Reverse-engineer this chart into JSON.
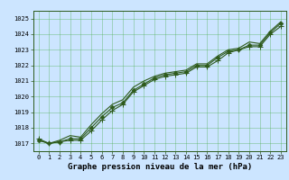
{
  "xlabel": "Graphe pression niveau de la mer (hPa)",
  "background_color": "#cce5ff",
  "plot_background": "#cce5ff",
  "grid_color": "#44aa44",
  "line_color": "#2d5a1b",
  "marker_color": "#2d5a1b",
  "x": [
    0,
    1,
    2,
    3,
    4,
    5,
    6,
    7,
    8,
    9,
    10,
    11,
    12,
    13,
    14,
    15,
    16,
    17,
    18,
    19,
    20,
    21,
    22,
    23
  ],
  "line1": [
    1017.2,
    1017.0,
    1017.1,
    1017.3,
    1017.3,
    1018.0,
    1018.7,
    1019.3,
    1019.6,
    1020.4,
    1020.8,
    1021.2,
    1021.4,
    1021.5,
    1021.6,
    1022.0,
    1022.0,
    1022.5,
    1022.9,
    1023.0,
    1023.3,
    1023.3,
    1024.1,
    1024.7
  ],
  "line2": [
    1017.3,
    1017.0,
    1017.1,
    1017.2,
    1017.2,
    1017.8,
    1018.5,
    1019.1,
    1019.5,
    1020.3,
    1020.7,
    1021.1,
    1021.3,
    1021.4,
    1021.5,
    1021.9,
    1021.9,
    1022.3,
    1022.8,
    1023.0,
    1023.2,
    1023.2,
    1024.0,
    1024.5
  ],
  "line3": [
    1017.2,
    1017.0,
    1017.2,
    1017.5,
    1017.4,
    1018.2,
    1018.9,
    1019.5,
    1019.8,
    1020.6,
    1021.0,
    1021.3,
    1021.5,
    1021.6,
    1021.7,
    1022.1,
    1022.1,
    1022.6,
    1023.0,
    1023.1,
    1023.5,
    1023.4,
    1024.2,
    1024.8
  ],
  "ylim": [
    1016.5,
    1025.5
  ],
  "xlim": [
    -0.5,
    23.5
  ],
  "yticks": [
    1017,
    1018,
    1019,
    1020,
    1021,
    1022,
    1023,
    1024,
    1025
  ],
  "xticks": [
    0,
    1,
    2,
    3,
    4,
    5,
    6,
    7,
    8,
    9,
    10,
    11,
    12,
    13,
    14,
    15,
    16,
    17,
    18,
    19,
    20,
    21,
    22,
    23
  ],
  "tick_fontsize": 5.0,
  "xlabel_fontsize": 6.5,
  "linewidth": 0.8,
  "markersize": 2.5
}
